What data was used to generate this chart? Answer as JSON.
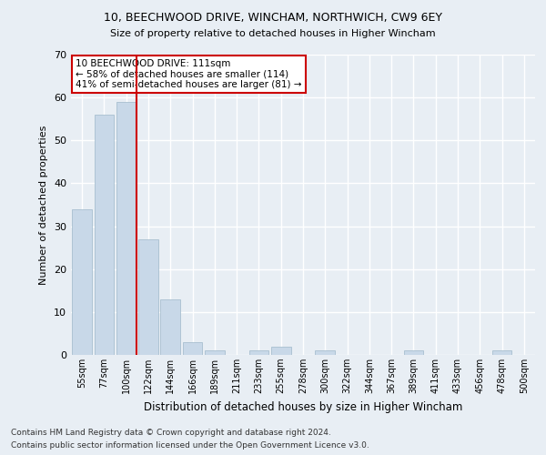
{
  "title1": "10, BEECHWOOD DRIVE, WINCHAM, NORTHWICH, CW9 6EY",
  "title2": "Size of property relative to detached houses in Higher Wincham",
  "xlabel": "Distribution of detached houses by size in Higher Wincham",
  "ylabel": "Number of detached properties",
  "footnote1": "Contains HM Land Registry data © Crown copyright and database right 2024.",
  "footnote2": "Contains public sector information licensed under the Open Government Licence v3.0.",
  "bar_labels": [
    "55sqm",
    "77sqm",
    "100sqm",
    "122sqm",
    "144sqm",
    "166sqm",
    "189sqm",
    "211sqm",
    "233sqm",
    "255sqm",
    "278sqm",
    "300sqm",
    "322sqm",
    "344sqm",
    "367sqm",
    "389sqm",
    "411sqm",
    "433sqm",
    "456sqm",
    "478sqm",
    "500sqm"
  ],
  "bar_values": [
    34,
    56,
    59,
    27,
    13,
    3,
    1,
    0,
    1,
    2,
    0,
    1,
    0,
    0,
    0,
    1,
    0,
    0,
    0,
    1,
    0
  ],
  "bar_color": "#c8d8e8",
  "bar_edge_color": "#a8bfd0",
  "background_color": "#e8eef4",
  "grid_color": "#ffffff",
  "vline_color": "#cc0000",
  "annotation_text": "10 BEECHWOOD DRIVE: 111sqm\n← 58% of detached houses are smaller (114)\n41% of semi-detached houses are larger (81) →",
  "annotation_box_color": "#ffffff",
  "annotation_box_edge_color": "#cc0000",
  "ylim": [
    0,
    70
  ],
  "yticks": [
    0,
    10,
    20,
    30,
    40,
    50,
    60,
    70
  ]
}
